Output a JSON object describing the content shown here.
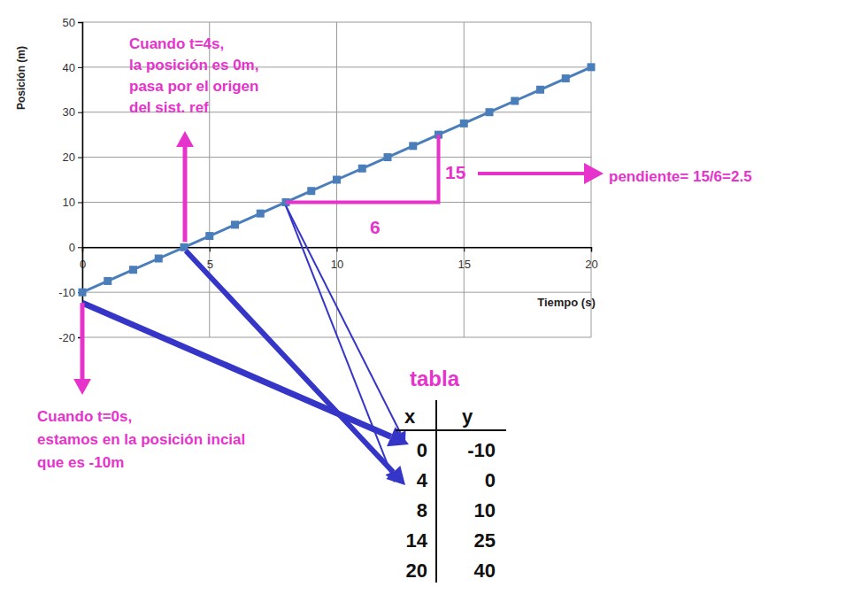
{
  "chart_data": {
    "type": "line",
    "x_label": "Tiempo (s)",
    "y_label": "Posición (m)",
    "x": [
      0,
      1,
      2,
      3,
      4,
      5,
      6,
      7,
      8,
      9,
      10,
      11,
      12,
      13,
      14,
      15,
      16,
      17,
      18,
      19,
      20
    ],
    "series": [
      {
        "color": "#4a7ebb",
        "marker": "square",
        "line_style": "solid",
        "values": [
          -10,
          -7.5,
          -5,
          -2.5,
          0,
          2.5,
          5,
          7.5,
          10,
          12.5,
          15,
          17.5,
          20,
          22.5,
          25,
          27.5,
          30,
          32.5,
          35,
          37.5,
          40
        ]
      }
    ],
    "xlim": [
      0,
      20
    ],
    "ylim": [
      -20,
      50
    ],
    "xticks": [
      0,
      5,
      10,
      15,
      20
    ],
    "yticks": [
      -20,
      -10,
      0,
      10,
      20,
      30,
      40,
      50
    ],
    "grid": true,
    "annotations": [
      {
        "lines": [
          "Cuando t=4s,",
          "la posición es 0m,",
          "pasa por el origen",
          "del sist. ref"
        ]
      },
      {
        "lines": [
          "Cuando t=0s,",
          "estamos en la posición incial",
          "que es -10m"
        ]
      },
      {
        "lines": [
          "6"
        ]
      },
      {
        "lines": [
          "15"
        ]
      },
      {
        "lines": [
          "pendiente= 15/6=2.5"
        ]
      }
    ]
  },
  "table": {
    "title": "tabla",
    "columns": [
      "x",
      "y"
    ],
    "rows": [
      [
        0,
        -10
      ],
      [
        4,
        0
      ],
      [
        8,
        10
      ],
      [
        14,
        25
      ],
      [
        20,
        40
      ]
    ]
  }
}
